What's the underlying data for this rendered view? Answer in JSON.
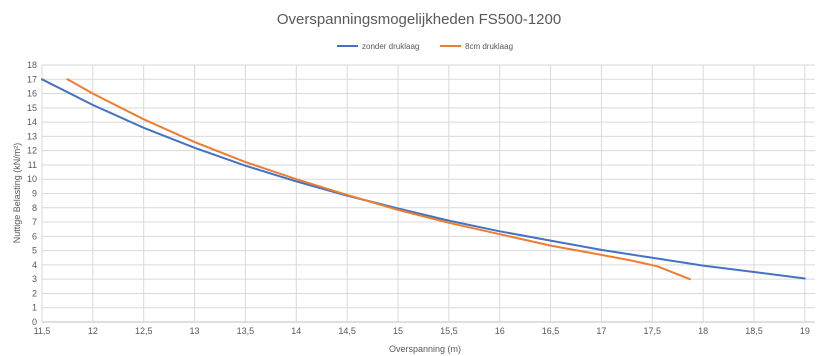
{
  "chart_data": {
    "type": "line",
    "title": "Overspanningsmogelijkheden FS500-1200",
    "xlabel": "Overspanning (m)",
    "ylabel": "Nuttige Belasting (kN/m²)",
    "xlim": [
      11.5,
      19.1
    ],
    "ylim": [
      0,
      18
    ],
    "x_ticks": [
      11.5,
      12,
      12.5,
      13,
      13.5,
      14,
      14.5,
      15,
      15.5,
      16,
      16.5,
      17,
      17.5,
      18,
      18.5,
      19
    ],
    "x_tick_labels": [
      "11,5",
      "12",
      "12,5",
      "13",
      "13,5",
      "14",
      "14,5",
      "15",
      "15,5",
      "16",
      "16,5",
      "17",
      "17,5",
      "18",
      "18,5",
      "19"
    ],
    "y_ticks": [
      0,
      1,
      2,
      3,
      4,
      5,
      6,
      7,
      8,
      9,
      10,
      11,
      12,
      13,
      14,
      15,
      16,
      17,
      18
    ],
    "grid": true,
    "legend_position": "top-center",
    "series": [
      {
        "name": "zonder druklaag",
        "color": "#4472c4",
        "x": [
          11.5,
          12.0,
          12.5,
          13.0,
          13.5,
          14.0,
          14.5,
          15.0,
          15.5,
          16.0,
          16.5,
          17.0,
          17.5,
          18.0,
          18.5,
          19.0
        ],
        "y": [
          17.0,
          15.2,
          13.6,
          12.2,
          10.95,
          9.85,
          8.85,
          7.95,
          7.1,
          6.35,
          5.7,
          5.05,
          4.5,
          3.95,
          3.5,
          3.05
        ]
      },
      {
        "name": "8cm druklaag",
        "color": "#ed7d31",
        "x": [
          11.75,
          12.0,
          12.5,
          13.0,
          13.5,
          14.0,
          14.5,
          15.0,
          15.5,
          16.0,
          16.5,
          17.0,
          17.3,
          17.55,
          17.87
        ],
        "y": [
          17.0,
          16.0,
          14.2,
          12.6,
          11.2,
          10.0,
          8.9,
          7.85,
          6.95,
          6.15,
          5.35,
          4.7,
          4.3,
          3.9,
          3.0
        ]
      }
    ]
  }
}
